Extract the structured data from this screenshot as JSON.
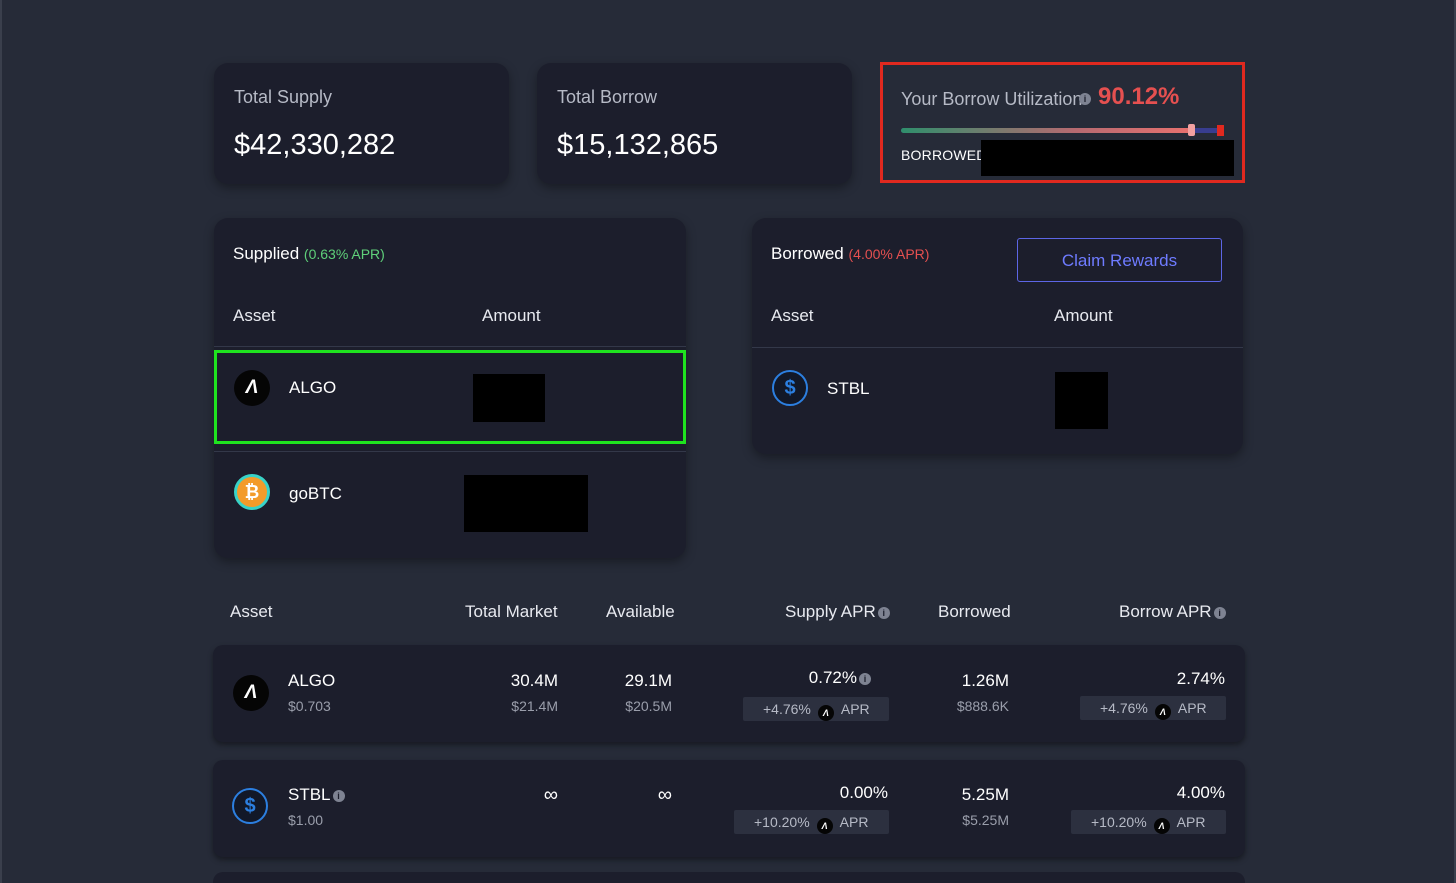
{
  "stats": {
    "total_supply_label": "Total Supply",
    "total_supply_value": "$42,330,282",
    "total_borrow_label": "Total Borrow",
    "total_borrow_value": "$15,132,865"
  },
  "utilization": {
    "label": "Your Borrow Utilization",
    "info_icon": "info-icon",
    "value": "90.12%",
    "fill_fraction": 0.9012,
    "borrowed_label": "BORROWED:",
    "colors": {
      "value": "#e55050",
      "max_marker": "#e0291f"
    }
  },
  "supplied": {
    "title": "Supplied",
    "apr": "(0.63% APR)",
    "col_asset": "Asset",
    "col_amount": "Amount",
    "rows": [
      {
        "name": "ALGO",
        "icon": "algo-icon"
      },
      {
        "name": "goBTC",
        "icon": "bitcoin-icon"
      }
    ]
  },
  "borrowed": {
    "title": "Borrowed",
    "apr": "(4.00% APR)",
    "claim_label": "Claim Rewards",
    "col_asset": "Asset",
    "col_amount": "Amount",
    "rows": [
      {
        "name": "STBL",
        "icon": "stbl-icon"
      }
    ]
  },
  "market": {
    "headers": {
      "asset": "Asset",
      "total_market": "Total Market",
      "available": "Available",
      "supply_apr": "Supply APR",
      "borrowed": "Borrowed",
      "borrow_apr": "Borrow APR"
    },
    "rows": [
      {
        "name": "ALGO",
        "price": "$0.703",
        "total_market": "30.4M",
        "total_market_usd": "$21.4M",
        "available": "29.1M",
        "available_usd": "$20.5M",
        "supply_apr": "0.72%",
        "supply_bonus": "+4.76%",
        "borrowed": "1.26M",
        "borrowed_usd": "$888.6K",
        "borrow_apr": "2.74%",
        "borrow_bonus": "+4.76%",
        "apr_suffix": "APR"
      },
      {
        "name": "STBL",
        "price": "$1.00",
        "total_market": "∞",
        "available": "∞",
        "supply_apr": "0.00%",
        "supply_bonus": "+10.20%",
        "borrowed": "5.25M",
        "borrowed_usd": "$5.25M",
        "borrow_apr": "4.00%",
        "borrow_bonus": "+10.20%",
        "apr_suffix": "APR"
      }
    ]
  },
  "highlight_colors": {
    "utilization_box": "#e0291f",
    "algo_row_box": "#1fe31f"
  }
}
